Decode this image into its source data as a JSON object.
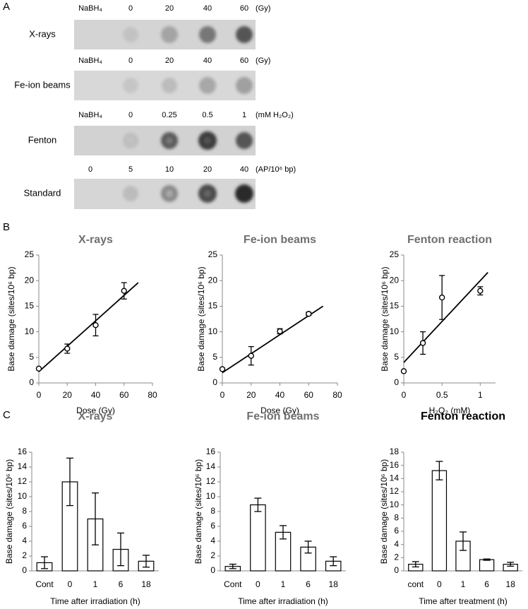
{
  "panel_labels": [
    "A",
    "B",
    "C"
  ],
  "blot": {
    "rows": [
      {
        "label": "X-rays",
        "header": [
          "NaBH₄",
          "0",
          "20",
          "40",
          "60"
        ],
        "unit": "(Gy)"
      },
      {
        "label": "Fe-ion beams",
        "header": [
          "NaBH₄",
          "0",
          "20",
          "40",
          "60"
        ],
        "unit": "(Gy)"
      },
      {
        "label": "Fenton",
        "header": [
          "NaBH₄",
          "0",
          "0.25",
          "0.5",
          "1"
        ],
        "unit": "(mM H₂O₂)"
      },
      {
        "label": "Standard",
        "header": [
          "0",
          "5",
          "10",
          "20",
          "40"
        ],
        "unit": "(AP/10⁶ bp)"
      }
    ]
  },
  "chart_data": [
    {
      "type": "scatter",
      "title": "X-rays",
      "title_color": "#707070",
      "xlabel": "Dose (Gy)",
      "ylabel": "Base damage (sites/10⁶ bp)",
      "color": "#000000",
      "x": [
        0,
        20,
        40,
        60
      ],
      "values": [
        2.8,
        6.7,
        11.3,
        18
      ],
      "errors": [
        null,
        0.9,
        2.1,
        1.6
      ],
      "fit": {
        "x": [
          0,
          70
        ],
        "values": [
          2.2,
          19.6
        ]
      },
      "xlim": [
        0,
        80
      ],
      "xticks": [
        0,
        20,
        40,
        60,
        80
      ],
      "ylim": [
        0,
        25
      ],
      "yticks": [
        0,
        5,
        10,
        15,
        20,
        25
      ]
    },
    {
      "type": "scatter",
      "title": "Fe-ion beams",
      "title_color": "#707070",
      "xlabel": "Dose (Gy)",
      "ylabel": "Base damage (sites/10⁶ bp)",
      "color": "#000000",
      "x": [
        0,
        20,
        40,
        60
      ],
      "values": [
        2.7,
        5.3,
        10.1,
        13.5
      ],
      "errors": [
        null,
        1.8,
        0.5,
        0.3
      ],
      "fit": {
        "x": [
          0,
          70
        ],
        "values": [
          2,
          15
        ]
      },
      "xlim": [
        0,
        80
      ],
      "xticks": [
        0,
        20,
        40,
        60,
        80
      ],
      "ylim": [
        0,
        25
      ],
      "yticks": [
        0,
        5,
        10,
        15,
        20,
        25
      ]
    },
    {
      "type": "scatter",
      "title": "Fenton reaction",
      "title_color": "#707070",
      "xlabel": "H₂O₂ (mM)",
      "ylabel": "Base damage (sites/10⁶ bp)",
      "color": "#000000",
      "x": [
        0,
        0.25,
        0.5,
        1
      ],
      "values": [
        2.3,
        7.8,
        16.7,
        18
      ],
      "errors": [
        null,
        2.2,
        4.3,
        0.8
      ],
      "fit": {
        "x": [
          0,
          1.1
        ],
        "values": [
          4,
          21.6
        ]
      },
      "xlim": [
        0,
        1.2
      ],
      "xticks": [
        0,
        0.5,
        1
      ],
      "ylim": [
        0,
        25
      ],
      "yticks": [
        0,
        5,
        10,
        15,
        20,
        25
      ]
    },
    {
      "type": "bar",
      "title": "X-rays",
      "title_color": "#707070",
      "xlabel": "Time after irradiation (h)",
      "ylabel": "Base damage (sites/10⁶ bp)",
      "color": "#ffffff",
      "categories": [
        "Cont",
        "0",
        "1",
        "6",
        "18"
      ],
      "values": [
        1.1,
        12,
        7,
        2.9,
        1.3
      ],
      "errors": [
        0.8,
        3.2,
        3.5,
        2.2,
        0.8
      ],
      "ylim": [
        0,
        16
      ],
      "yticks": [
        0,
        2,
        4,
        6,
        8,
        10,
        12,
        14,
        16
      ]
    },
    {
      "type": "bar",
      "title": "Fe-ion beams",
      "title_color": "#707070",
      "xlabel": "Time after irradiation (h)",
      "ylabel": "Base damage (sites/10⁶ bp)",
      "color": "#ffffff",
      "categories": [
        "Cont",
        "0",
        "1",
        "6",
        "18"
      ],
      "values": [
        0.6,
        8.9,
        5.2,
        3.2,
        1.3
      ],
      "errors": [
        0.3,
        0.9,
        0.9,
        0.8,
        0.6
      ],
      "ylim": [
        0,
        16
      ],
      "yticks": [
        0,
        2,
        4,
        6,
        8,
        10,
        12,
        14,
        16
      ]
    },
    {
      "type": "bar",
      "title": "Fenton reaction",
      "title_color": "#000000",
      "xlabel": "Time after treatment (h)",
      "ylabel": "Base damage (sites/10⁶ bp)",
      "color": "#ffffff",
      "categories": [
        "cont",
        "0",
        "1",
        "6",
        "18"
      ],
      "values": [
        1,
        15.2,
        4.5,
        1.7,
        1
      ],
      "errors": [
        0.4,
        1.4,
        1.4,
        0.1,
        0.3
      ],
      "ylim": [
        0,
        18
      ],
      "yticks": [
        0,
        2,
        4,
        6,
        8,
        10,
        12,
        14,
        16,
        18
      ]
    }
  ]
}
